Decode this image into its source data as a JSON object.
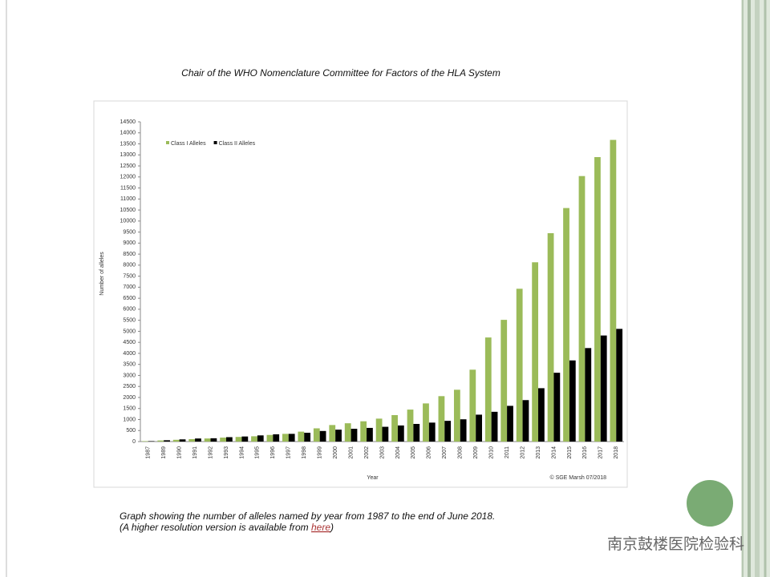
{
  "slide": {
    "header": "Chair of the WHO Nomenclature Committee for Factors of the HLA System",
    "caption_line1": "Graph showing the number of alleles named by year from 1987 to the end of June 2018.",
    "caption_line2_before": "(A higher resolution version is available from ",
    "caption_link": "here",
    "caption_line2_after": ")",
    "watermark": "南京鼓楼医院检验科"
  },
  "chart_data": {
    "type": "bar",
    "x_label": "Year",
    "y_label": "Number of alleles",
    "credit": "© SGE Marsh 07/2018",
    "legend": "top-left",
    "categories": [
      "1987",
      "1989",
      "1990",
      "1991",
      "1992",
      "1993",
      "1994",
      "1995",
      "1996",
      "1997",
      "1998",
      "1999",
      "2000",
      "2001",
      "2002",
      "2003",
      "2004",
      "2005",
      "2006",
      "2007",
      "2008",
      "2009",
      "2010",
      "2011",
      "2012",
      "2013",
      "2014",
      "2015",
      "2016",
      "2017",
      "2018"
    ],
    "series": [
      {
        "name": "Class I Alleles",
        "color": "#9bbb59",
        "values": [
          20,
          50,
          80,
          110,
          140,
          180,
          210,
          240,
          300,
          350,
          450,
          600,
          750,
          830,
          920,
          1040,
          1200,
          1450,
          1730,
          2060,
          2350,
          3260,
          4720,
          5520,
          6930,
          8130,
          9450,
          10590,
          12040,
          12900,
          13680
        ]
      },
      {
        "name": "Class II Alleles",
        "color": "#000000",
        "values": [
          20,
          60,
          100,
          140,
          150,
          200,
          230,
          280,
          330,
          350,
          400,
          480,
          540,
          580,
          620,
          670,
          730,
          800,
          860,
          940,
          1010,
          1220,
          1350,
          1620,
          1880,
          2420,
          3120,
          3680,
          4240,
          4810,
          5110
        ]
      }
    ],
    "ylim": [
      0,
      14500
    ],
    "yticks": [
      0,
      500,
      1000,
      1500,
      2000,
      2500,
      3000,
      3500,
      4000,
      4500,
      5000,
      5500,
      6000,
      6500,
      7000,
      7500,
      8000,
      8500,
      9000,
      9500,
      10000,
      10500,
      11000,
      11500,
      12000,
      12500,
      13000,
      13500,
      14000,
      14500
    ]
  }
}
